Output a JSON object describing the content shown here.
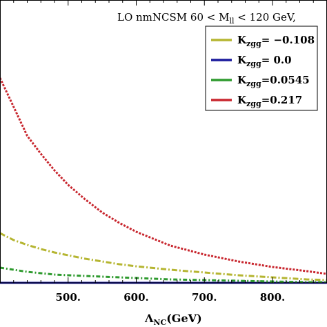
{
  "chart_data": {
    "type": "line",
    "title": "LO nmNCSM 60 < M",
    "title_sub": "ll",
    "title_rest": " < 120 GeV,",
    "xlabel": "Λ",
    "xlabel_sub": "NC",
    "xlabel_rest": "(GeV)",
    "ylabel": "",
    "xlim": [
      400,
      880
    ],
    "ylim": [
      0,
      410
    ],
    "grid": false,
    "legend_position": "top-right",
    "x_ticks": [
      {
        "value": 500,
        "label": "500."
      },
      {
        "value": 600,
        "label": "600."
      },
      {
        "value": 700,
        "label": "700."
      },
      {
        "value": 800,
        "label": "800."
      }
    ],
    "series": [
      {
        "name_main": "K",
        "name_sub": "zgg",
        "name_value": "= −0.108",
        "color": "#b5b531",
        "dash": "8,3,2,3",
        "x": [
          400,
          420,
          440,
          460,
          480,
          500,
          525,
          550,
          575,
          600,
          650,
          700,
          750,
          800,
          850,
          880
        ],
        "y": [
          72,
          62,
          55,
          49,
          44,
          40,
          35,
          31,
          27,
          24,
          19,
          15,
          11,
          8,
          5,
          4
        ]
      },
      {
        "name_main": "K",
        "name_sub": "zgg",
        "name_value": "= 0.0",
        "color": "#1a1a9c",
        "dash": "",
        "x": [
          400,
          880
        ],
        "y": [
          0,
          0
        ]
      },
      {
        "name_main": "K",
        "name_sub": "zgg",
        "name_value": "=0.0545",
        "color": "#2e9a2e",
        "dash": "6,3,2,3",
        "x": [
          400,
          420,
          440,
          460,
          480,
          500,
          550,
          600,
          650,
          700,
          750,
          800,
          850,
          880
        ],
        "y": [
          22,
          19,
          16,
          14,
          12,
          11,
          9,
          7,
          5,
          4,
          3,
          2,
          1,
          1
        ]
      },
      {
        "name_main": "K",
        "name_sub": "zgg",
        "name_value": "=0.217",
        "color": "#c8262e",
        "dash": "3,2",
        "x": [
          400,
          420,
          440,
          460,
          480,
          500,
          525,
          550,
          575,
          600,
          650,
          700,
          750,
          800,
          850,
          880
        ],
        "y": [
          297,
          255,
          213,
          187,
          163,
          142,
          121,
          102,
          87,
          74,
          54,
          41,
          31,
          23,
          17,
          13
        ]
      }
    ]
  }
}
